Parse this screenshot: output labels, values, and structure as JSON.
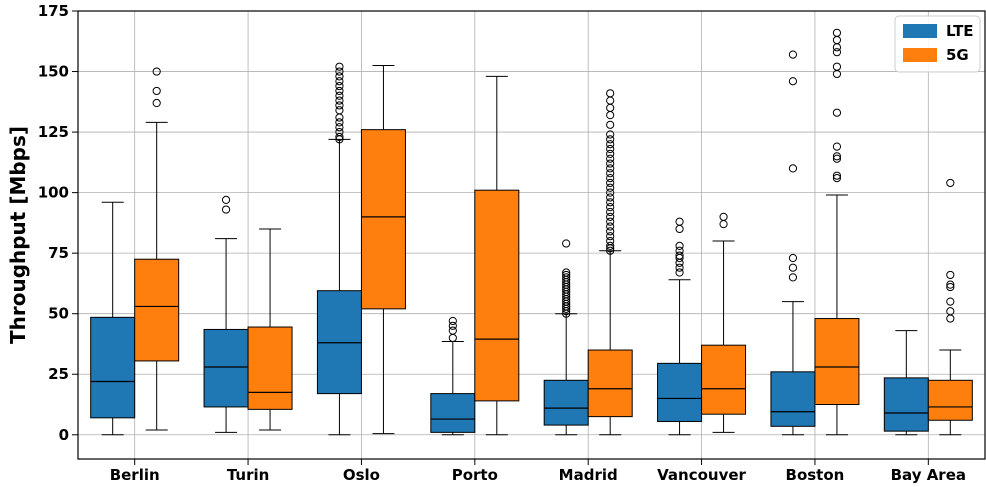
{
  "chart_data": {
    "type": "box",
    "title": "",
    "xlabel": "",
    "ylabel": "Throughput [Mbps]",
    "ylim": [
      -10,
      175
    ],
    "yticks": [
      0,
      25,
      50,
      75,
      100,
      125,
      150,
      175
    ],
    "grid": true,
    "legend_position": "top-right",
    "categories": [
      "Berlin",
      "Turin",
      "Oslo",
      "Porto",
      "Madrid",
      "Vancouver",
      "Boston",
      "Bay Area"
    ],
    "series": [
      {
        "name": "LTE",
        "color": "#1f77b4",
        "boxes": [
          {
            "whislo": 0,
            "q1": 7,
            "med": 22,
            "q3": 48.5,
            "whishi": 96,
            "fliers": []
          },
          {
            "whislo": 1,
            "q1": 11.5,
            "med": 28,
            "q3": 43.5,
            "whishi": 81,
            "fliers": [
              93,
              97
            ]
          },
          {
            "whislo": 0,
            "q1": 17,
            "med": 38,
            "q3": 59.5,
            "whishi": 122,
            "fliers": [
              122,
              123,
              125,
              127,
              129,
              131,
              134,
              136,
              138,
              140,
              142,
              144,
              146,
              148,
              150,
              152
            ]
          },
          {
            "whislo": 0,
            "q1": 1,
            "med": 6.5,
            "q3": 17,
            "whishi": 38.5,
            "fliers": [
              40,
              43,
              45,
              47
            ]
          },
          {
            "whislo": 0,
            "q1": 4,
            "med": 11,
            "q3": 22.5,
            "whishi": 50,
            "fliers": [
              50,
              51,
              52,
              53,
              54,
              55,
              56,
              57,
              58,
              59,
              60,
              61,
              62,
              63,
              64,
              65,
              66,
              67,
              79
            ]
          },
          {
            "whislo": 0,
            "q1": 5.5,
            "med": 15,
            "q3": 29.5,
            "whishi": 64,
            "fliers": [
              67,
              69,
              71,
              73,
              74,
              76,
              78,
              85,
              88
            ]
          },
          {
            "whislo": 0,
            "q1": 3.5,
            "med": 9.5,
            "q3": 26,
            "whishi": 55,
            "fliers": [
              65,
              69,
              73,
              110,
              146,
              157
            ]
          },
          {
            "whislo": 0,
            "q1": 1.5,
            "med": 9,
            "q3": 23.5,
            "whishi": 43,
            "fliers": []
          }
        ]
      },
      {
        "name": "5G",
        "color": "#ff7f0e",
        "boxes": [
          {
            "whislo": 2,
            "q1": 30.5,
            "med": 53,
            "q3": 72.5,
            "whishi": 129,
            "fliers": [
              137,
              142,
              150
            ]
          },
          {
            "whislo": 2,
            "q1": 10.5,
            "med": 17.5,
            "q3": 44.5,
            "whishi": 85,
            "fliers": []
          },
          {
            "whislo": 0.5,
            "q1": 52,
            "med": 90,
            "q3": 126,
            "whishi": 152.5,
            "fliers": []
          },
          {
            "whislo": 0,
            "q1": 14,
            "med": 39.5,
            "q3": 101,
            "whishi": 148,
            "fliers": []
          },
          {
            "whislo": 0,
            "q1": 7.5,
            "med": 19,
            "q3": 35,
            "whishi": 76,
            "fliers": [
              76,
              77,
              78,
              80,
              82,
              84,
              86,
              88,
              90,
              92,
              94,
              96,
              98,
              100,
              102,
              104,
              106,
              108,
              110,
              112,
              114,
              116,
              118,
              120,
              122,
              124,
              128,
              132,
              135,
              138,
              141
            ]
          },
          {
            "whislo": 1,
            "q1": 8.5,
            "med": 19,
            "q3": 37,
            "whishi": 80,
            "fliers": [
              87,
              90
            ]
          },
          {
            "whislo": 0,
            "q1": 12.5,
            "med": 28,
            "q3": 48,
            "whishi": 99,
            "fliers": [
              106,
              107,
              114,
              115,
              119,
              133,
              149,
              152,
              158,
              160,
              163,
              166
            ]
          },
          {
            "whislo": 0,
            "q1": 6,
            "med": 11.5,
            "q3": 22.5,
            "whishi": 35,
            "fliers": [
              48,
              51,
              55,
              61,
              62,
              66,
              104
            ]
          }
        ]
      }
    ]
  }
}
